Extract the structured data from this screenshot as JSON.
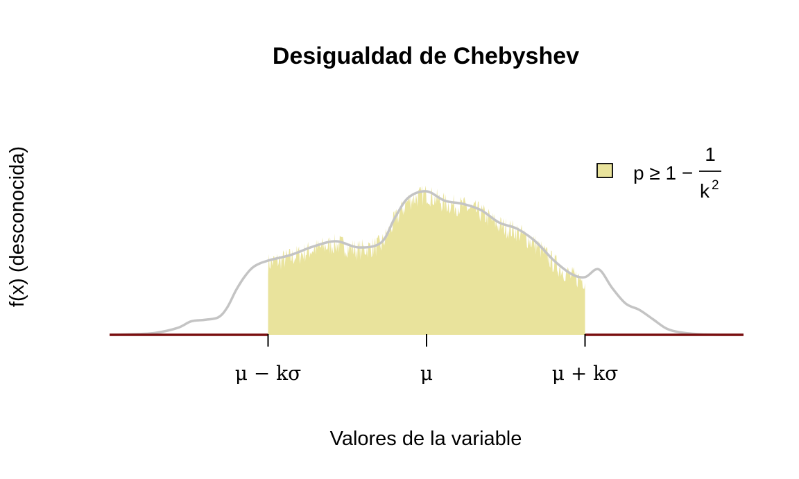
{
  "chart_data": {
    "type": "area",
    "title": "Desigualdad de Chebyshev",
    "xlabel": "Valores de la variable",
    "ylabel": "f(x) (desconocida)",
    "xlim": [
      -3.5,
      3.5
    ],
    "ylim": [
      0,
      0.5
    ],
    "k_sigma": 1.75,
    "ticks": [
      {
        "value": -1.75,
        "label": "μ − kσ"
      },
      {
        "value": 0,
        "label": "μ"
      },
      {
        "value": 1.75,
        "label": "μ + kσ"
      }
    ],
    "legend": {
      "position": "top-right",
      "label_prefix": "p ≥ 1 −",
      "numerator": "1",
      "denominator_base": "k",
      "denominator_exp": "2"
    },
    "colors": {
      "shaded": "#E9E39C",
      "density_line": "#C4C4C4",
      "outside_line": "#7A0F10",
      "axis": "#000000"
    },
    "series": [
      {
        "role": "density",
        "x": [
          -3.5,
          -3.25,
          -3,
          -2.75,
          -2.6,
          -2.45,
          -2.3,
          -2.2,
          -2.1,
          -2,
          -1.9,
          -1.75,
          -1.5,
          -1.25,
          -1,
          -0.75,
          -0.5,
          -0.35,
          -0.2,
          0,
          0.2,
          0.4,
          0.6,
          0.8,
          1,
          1.2,
          1.4,
          1.6,
          1.75,
          1.9,
          2.05,
          2.2,
          2.35,
          2.5,
          2.65,
          2.8,
          3,
          3.25,
          3.5
        ],
        "y": [
          0,
          0.002,
          0.006,
          0.022,
          0.043,
          0.048,
          0.056,
          0.088,
          0.145,
          0.19,
          0.22,
          0.238,
          0.256,
          0.283,
          0.3,
          0.28,
          0.296,
          0.375,
          0.44,
          0.46,
          0.43,
          0.42,
          0.4,
          0.36,
          0.34,
          0.3,
          0.24,
          0.195,
          0.185,
          0.21,
          0.15,
          0.1,
          0.08,
          0.05,
          0.02,
          0.008,
          0.002,
          0,
          0
        ]
      }
    ],
    "shaded_interval": [
      -1.75,
      1.75
    ]
  }
}
